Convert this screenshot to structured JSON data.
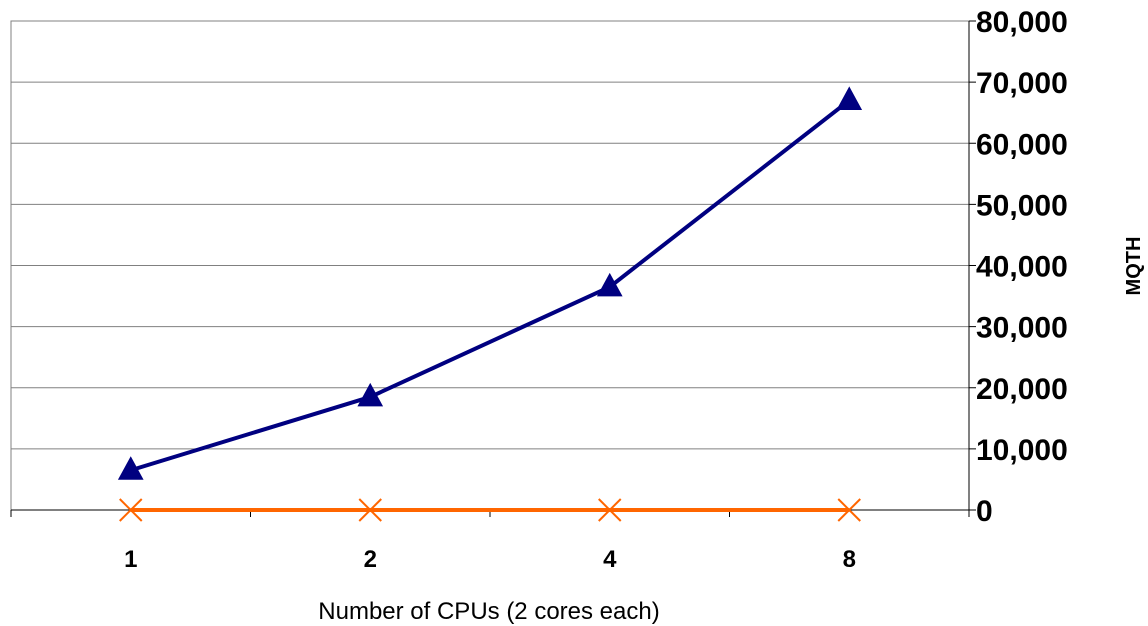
{
  "chart_data": {
    "type": "line",
    "categories": [
      "1",
      "2",
      "4",
      "8"
    ],
    "series": [
      {
        "values": [
          6500,
          18500,
          36500,
          67000
        ],
        "color": "#000080",
        "marker": "triangle"
      },
      {
        "values": [
          0,
          0,
          0,
          0
        ],
        "color": "#ff6600",
        "marker": "x"
      }
    ],
    "xlabel": "Number of CPUs (2 cores each)",
    "ylabel": "MQTH",
    "ylim": [
      0,
      80000
    ],
    "y_ticks": [
      "0",
      "10,000",
      "20,000",
      "30,000",
      "40,000",
      "50,000",
      "60,000",
      "70,000",
      "80,000"
    ],
    "y_axis_side": "right",
    "grid": true
  }
}
